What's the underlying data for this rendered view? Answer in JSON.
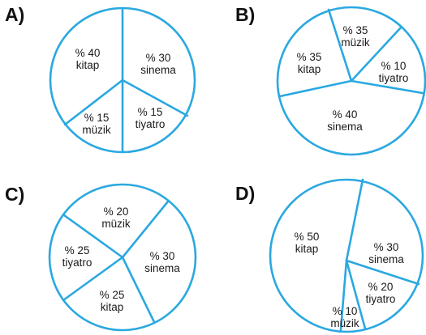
{
  "colors": {
    "line": "#2aa8e0",
    "text": "#1a1a1a",
    "letter": "#111111"
  },
  "chart_data": [
    {
      "type": "pie",
      "option_label": "A)",
      "slices": [
        {
          "percent_label": "% 30",
          "category": "sinema",
          "value": 30
        },
        {
          "percent_label": "% 15",
          "category": "tiyatro",
          "value": 15
        },
        {
          "percent_label": "% 15",
          "category": "müzik",
          "value": 15
        },
        {
          "percent_label": "% 40",
          "category": "kitap",
          "value": 40
        }
      ]
    },
    {
      "type": "pie",
      "option_label": "B)",
      "slices": [
        {
          "percent_label": "% 35",
          "category": "müzik",
          "value": 35
        },
        {
          "percent_label": "% 10",
          "category": "tiyatro",
          "value": 10
        },
        {
          "percent_label": "% 40",
          "category": "sinema",
          "value": 40
        },
        {
          "percent_label": "% 35",
          "category": "kitap",
          "value": 35
        }
      ]
    },
    {
      "type": "pie",
      "option_label": "C)",
      "slices": [
        {
          "percent_label": "% 20",
          "category": "müzik",
          "value": 20
        },
        {
          "percent_label": "% 30",
          "category": "sinema",
          "value": 30
        },
        {
          "percent_label": "% 25",
          "category": "kitap",
          "value": 25
        },
        {
          "percent_label": "% 25",
          "category": "tiyatro",
          "value": 25
        }
      ]
    },
    {
      "type": "pie",
      "option_label": "D)",
      "slices": [
        {
          "percent_label": "% 30",
          "category": "sinema",
          "value": 30
        },
        {
          "percent_label": "% 20",
          "category": "tiyatro",
          "value": 20
        },
        {
          "percent_label": "% 10",
          "category": "müzik",
          "value": 10
        },
        {
          "percent_label": "% 50",
          "category": "kitap",
          "value": 50
        }
      ]
    }
  ]
}
